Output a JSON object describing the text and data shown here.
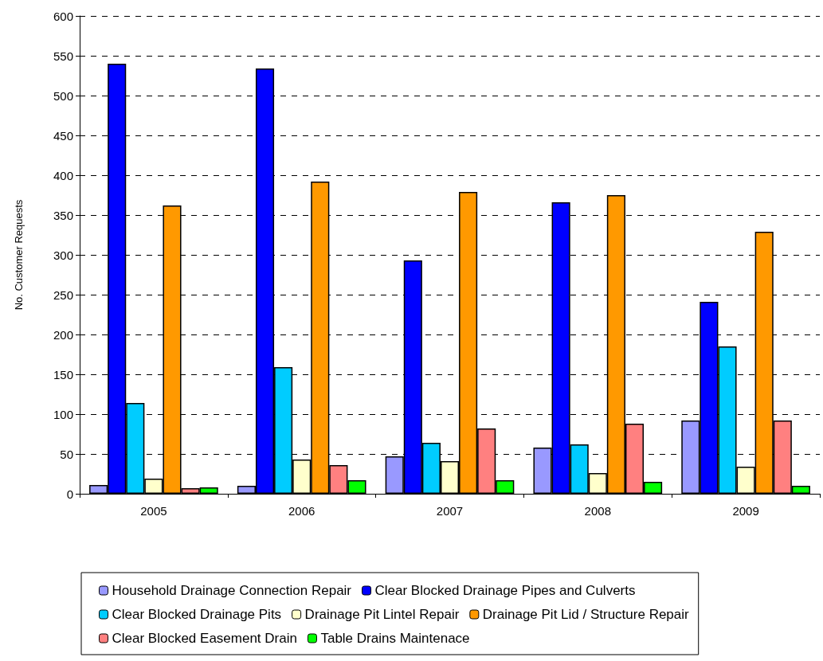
{
  "chart_data": {
    "type": "bar",
    "ylabel": "No. Customer Requests",
    "categories": [
      "2005",
      "2006",
      "2007",
      "2008",
      "2009"
    ],
    "series": [
      {
        "name": "Household Drainage Connection Repair",
        "color": "#9999ff",
        "values": [
          11,
          10,
          47,
          58,
          92
        ]
      },
      {
        "name": "Clear Blocked Drainage Pipes and Culverts",
        "color": "#0000ff",
        "values": [
          540,
          534,
          293,
          366,
          241
        ]
      },
      {
        "name": "Clear Blocked Drainage Pits",
        "color": "#00ccff",
        "values": [
          114,
          159,
          64,
          62,
          185
        ]
      },
      {
        "name": "Drainage Pit Lintel Repair",
        "color": "#ffffcc",
        "values": [
          19,
          43,
          41,
          26,
          34
        ]
      },
      {
        "name": "Drainage Pit Lid / Structure Repair",
        "color": "#ff9900",
        "values": [
          362,
          392,
          379,
          375,
          329
        ]
      },
      {
        "name": "Clear Blocked Easement Drain",
        "color": "#ff8080",
        "values": [
          7,
          36,
          82,
          88,
          92
        ]
      },
      {
        "name": "Table Drains Maintenace",
        "color": "#00ff00",
        "values": [
          8,
          17,
          17,
          15,
          10
        ]
      }
    ],
    "ylim": [
      0,
      600
    ],
    "yticks": [
      0,
      50,
      100,
      150,
      200,
      250,
      300,
      350,
      400,
      450,
      500,
      550,
      600
    ],
    "grid": "y",
    "legend": "bottom"
  }
}
